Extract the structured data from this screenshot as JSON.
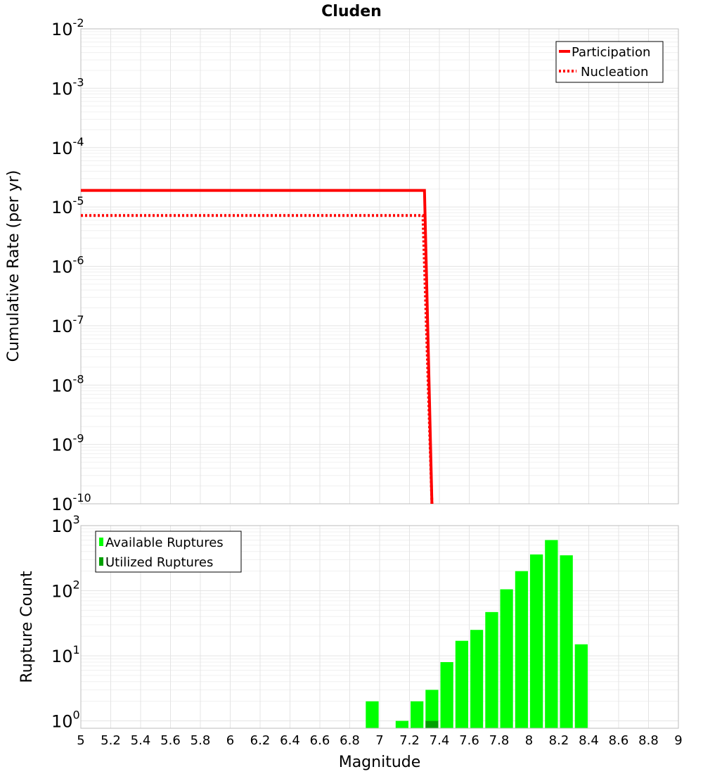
{
  "chart_data": [
    {
      "type": "line",
      "title": "Cluden",
      "xlabel": "Magnitude",
      "ylabel": "Cumulative Rate (per yr)",
      "xlim": [
        5,
        9
      ],
      "ylim": [
        1e-10,
        0.01
      ],
      "yscale": "log",
      "grid": true,
      "legend": "top-right",
      "yticks": [
        {
          "base": "10",
          "exp": "-2"
        },
        {
          "base": "10",
          "exp": "-3"
        },
        {
          "base": "10",
          "exp": "-4"
        },
        {
          "base": "10",
          "exp": "-5"
        },
        {
          "base": "10",
          "exp": "-6"
        },
        {
          "base": "10",
          "exp": "-7"
        },
        {
          "base": "10",
          "exp": "-8"
        },
        {
          "base": "10",
          "exp": "-9"
        },
        {
          "base": "10",
          "exp": "-10"
        }
      ],
      "series": [
        {
          "name": "Participation",
          "style": "solid",
          "color": "#ff0000",
          "x": [
            5.0,
            7.3,
            7.35
          ],
          "y": [
            1.9e-05,
            1.9e-05,
            1e-10
          ]
        },
        {
          "name": "Nucleation",
          "style": "dotted",
          "color": "#ff0000",
          "x": [
            5.0,
            7.29,
            7.35
          ],
          "y": [
            7.2e-06,
            7.2e-06,
            1e-10
          ]
        }
      ]
    },
    {
      "type": "bar",
      "xlabel": "Magnitude",
      "ylabel": "Rupture Count",
      "xlim": [
        5,
        9
      ],
      "ylim": [
        0.77,
        1000
      ],
      "yscale": "log",
      "grid": true,
      "legend": "top-left",
      "xticks": [
        "5",
        "5.2",
        "5.4",
        "5.6",
        "5.8",
        "6",
        "6.2",
        "6.4",
        "6.6",
        "6.8",
        "7",
        "7.2",
        "7.4",
        "7.6",
        "7.8",
        "8",
        "8.2",
        "8.4",
        "8.6",
        "8.8",
        "9"
      ],
      "yticks": [
        {
          "base": "10",
          "exp": "3"
        },
        {
          "base": "10",
          "exp": "2"
        },
        {
          "base": "10",
          "exp": "1"
        },
        {
          "base": "10",
          "exp": "0"
        }
      ],
      "series": [
        {
          "name": "Available Ruptures",
          "color": "#00ff00",
          "x": [
            6.95,
            7.05,
            7.15,
            7.25,
            7.35,
            7.45,
            7.55,
            7.65,
            7.75,
            7.85,
            7.95,
            8.05,
            8.15,
            8.25,
            8.35
          ],
          "values": [
            2,
            0,
            1,
            2,
            3,
            8,
            17,
            25,
            47,
            105,
            200,
            360,
            600,
            350,
            15
          ]
        },
        {
          "name": "Utilized Ruptures",
          "color": "#00a000",
          "x": [
            7.35
          ],
          "values": [
            1
          ]
        }
      ]
    }
  ]
}
